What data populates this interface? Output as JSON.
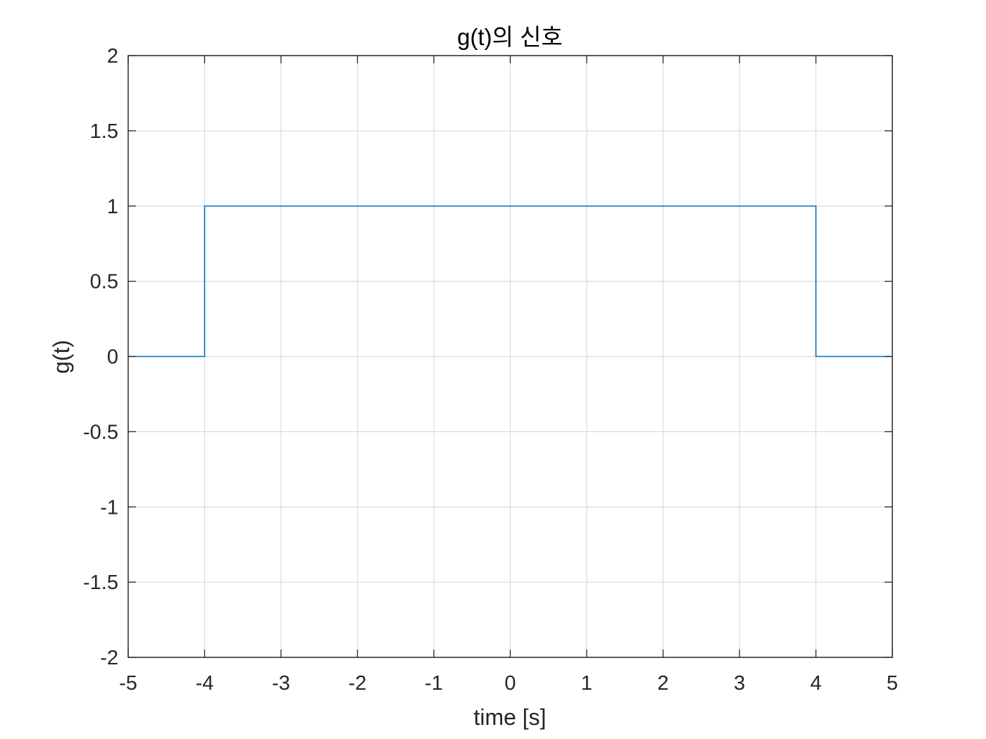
{
  "chart_data": {
    "type": "line",
    "title": "g(t)의 신호",
    "xlabel": "time [s]",
    "ylabel": "g(t)",
    "xlim": [
      -5,
      5
    ],
    "ylim": [
      -2,
      2
    ],
    "xticks": [
      -5,
      -4,
      -3,
      -2,
      -1,
      0,
      1,
      2,
      3,
      4,
      5
    ],
    "xtick_labels": [
      "-5",
      "-4",
      "-3",
      "-2",
      "-1",
      "0",
      "1",
      "2",
      "3",
      "4",
      "5"
    ],
    "yticks": [
      -2,
      -1.5,
      -1,
      -0.5,
      0,
      0.5,
      1,
      1.5,
      2
    ],
    "ytick_labels": [
      "-2",
      "-1.5",
      "-1",
      "-0.5",
      "0",
      "0.5",
      "1",
      "1.5",
      "2"
    ],
    "grid": true,
    "legend": "none",
    "series": [
      {
        "color": "#0072BD",
        "x": [
          -5,
          -4,
          -4,
          4,
          4,
          5
        ],
        "y": [
          0,
          0,
          1,
          1,
          0,
          0
        ]
      }
    ]
  }
}
